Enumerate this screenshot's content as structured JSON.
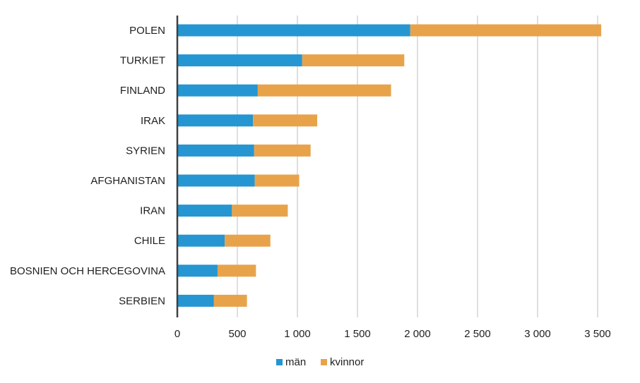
{
  "chart_data": {
    "type": "bar",
    "orientation": "horizontal",
    "stacked": true,
    "categories": [
      "POLEN",
      "TURKIET",
      "FINLAND",
      "IRAK",
      "SYRIEN",
      "AFGHANISTAN",
      "IRAN",
      "CHILE",
      "BOSNIEN OCH HERCEGOVINA",
      "SERBIEN"
    ],
    "series": [
      {
        "name": "män",
        "color": "#2596d1",
        "values": [
          1940,
          1040,
          670,
          630,
          640,
          645,
          455,
          395,
          335,
          305
        ]
      },
      {
        "name": "kvinnor",
        "color": "#e8a34a",
        "values": [
          1590,
          850,
          1110,
          535,
          470,
          370,
          465,
          380,
          320,
          275
        ]
      }
    ],
    "xlim": [
      0,
      3500
    ],
    "xticks": [
      0,
      500,
      1000,
      1500,
      2000,
      2500,
      3000,
      3500
    ],
    "xtick_labels": [
      "0",
      "500",
      "1 000",
      "1 500",
      "2 000",
      "2 500",
      "3 000",
      "3 500"
    ],
    "grid": "vertical",
    "legend_position": "bottom"
  }
}
